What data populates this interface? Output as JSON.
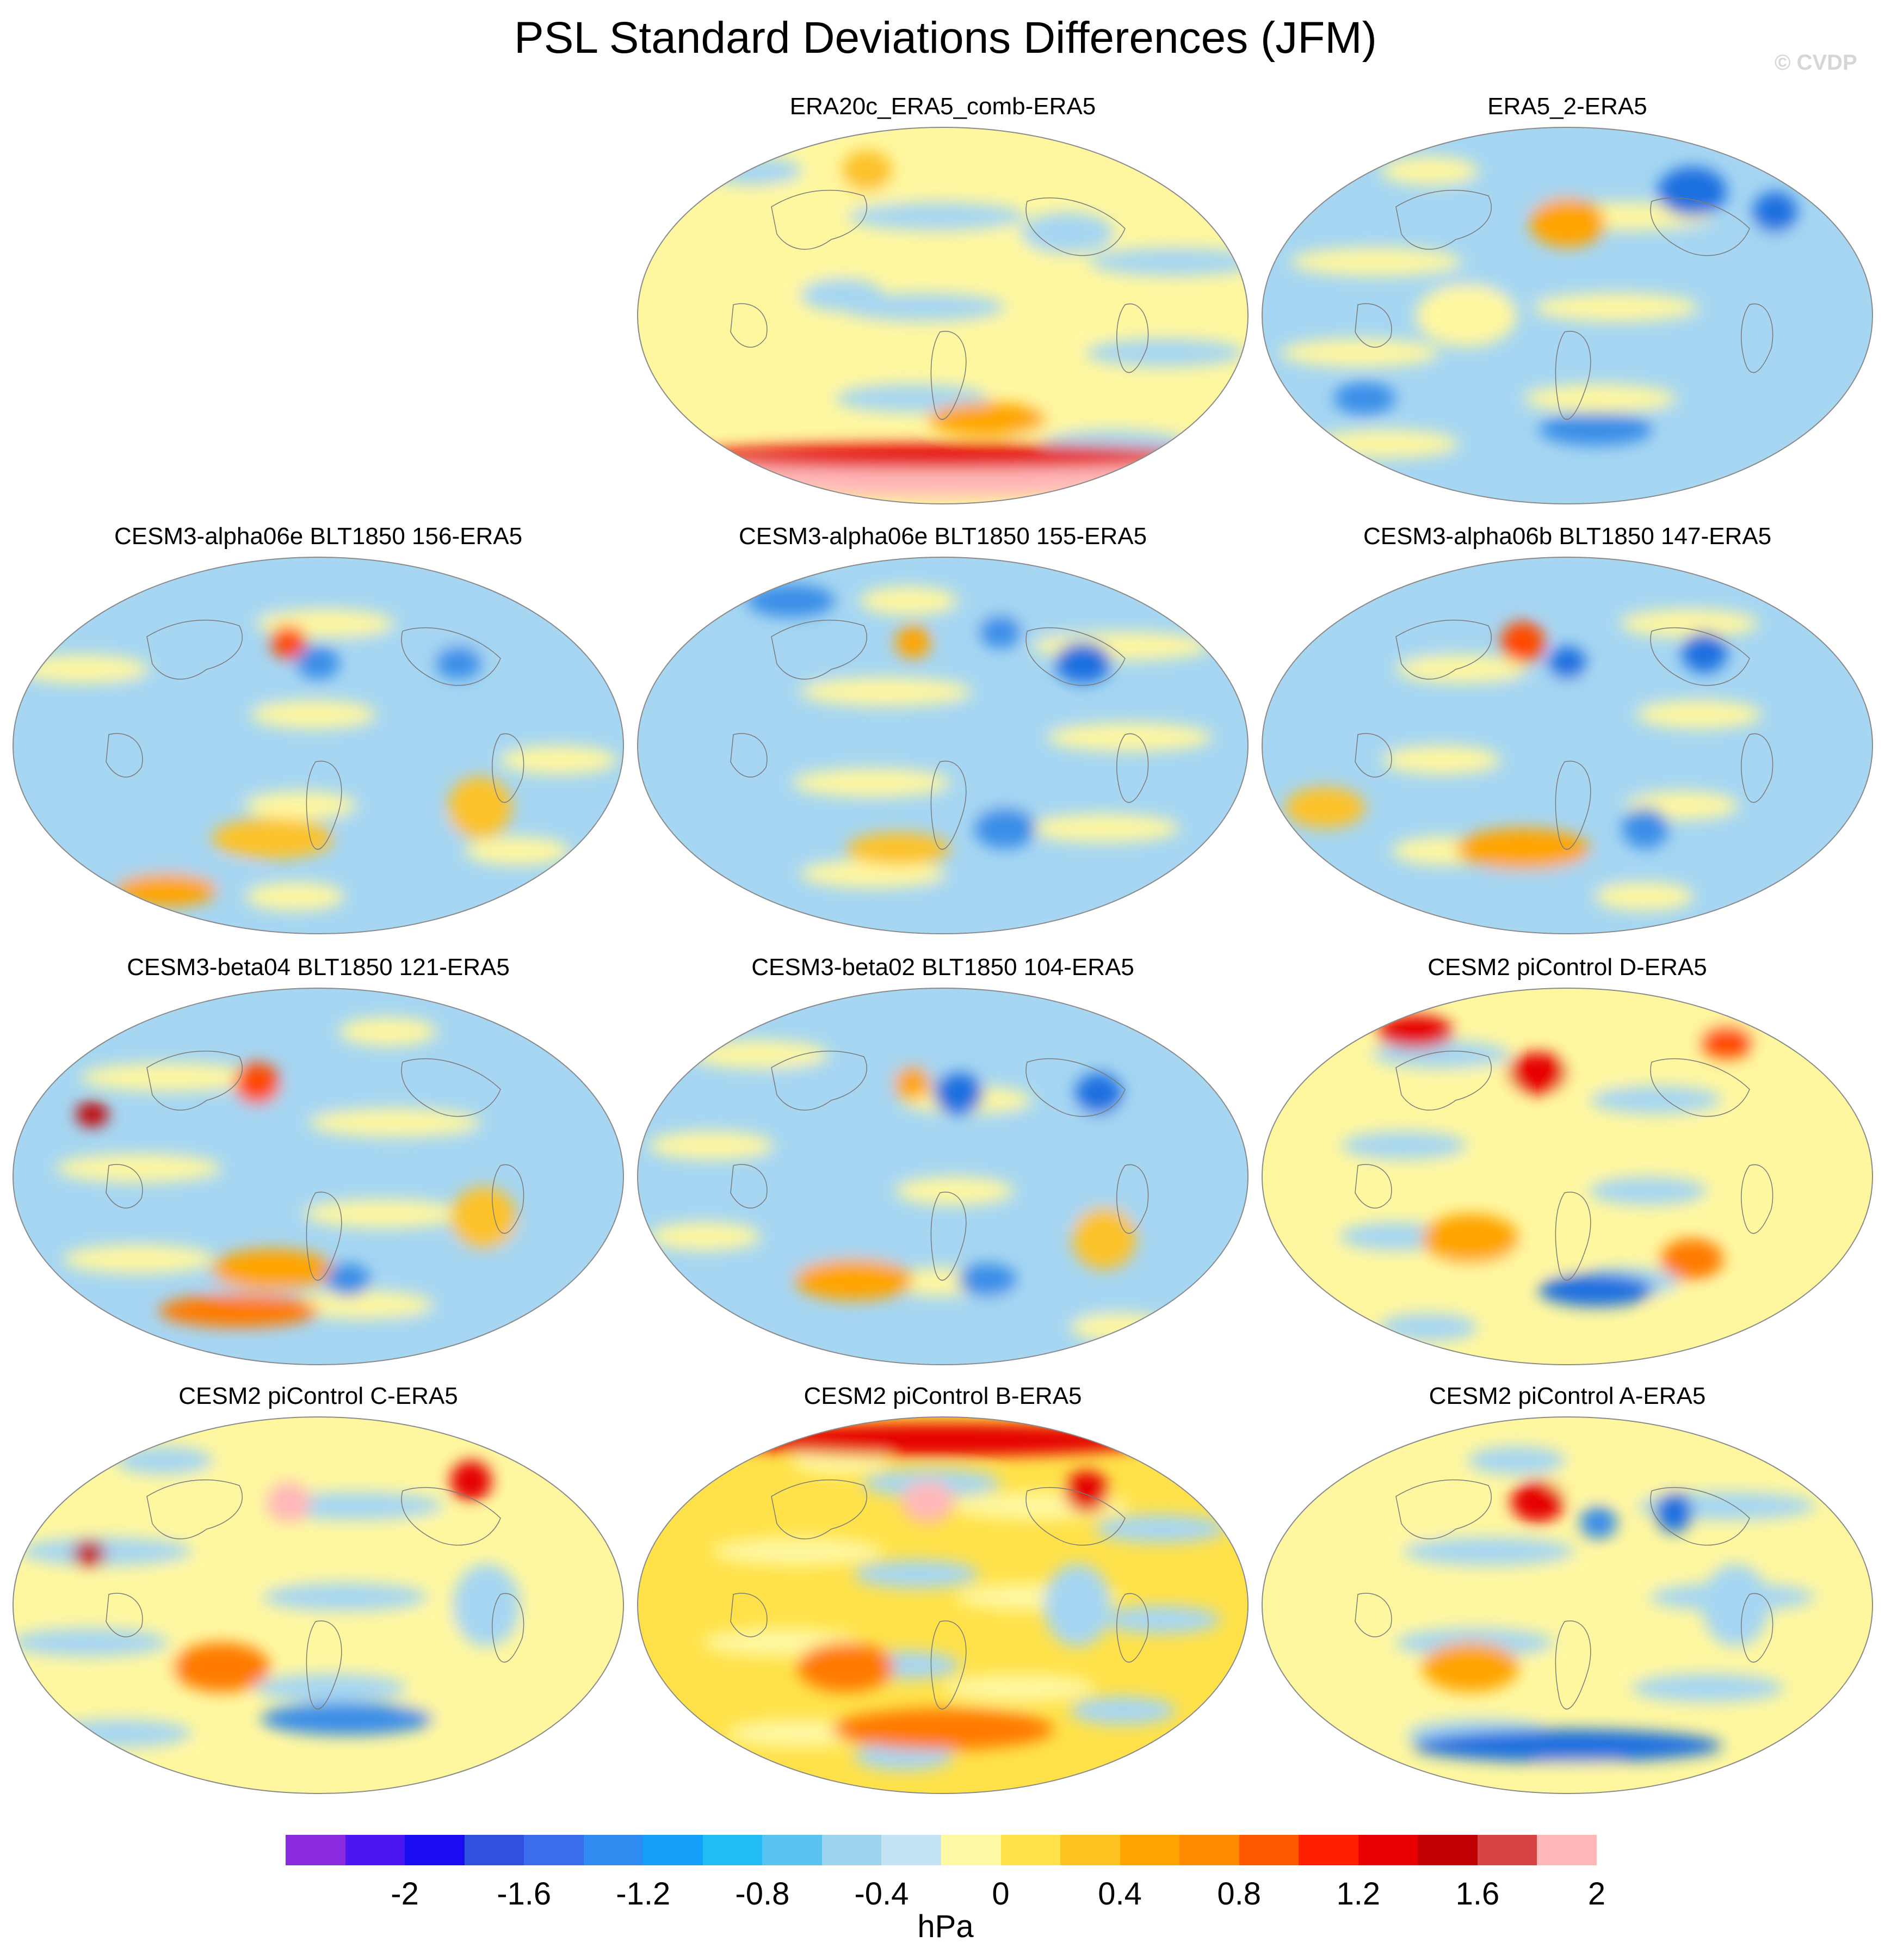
{
  "title": "PSL Standard Deviations Differences (JFM)",
  "watermark": "© CVDP",
  "colors": {
    "land_outline": "#7a7a7a",
    "map_border": "#8a8a8a"
  },
  "panels": [
    {
      "id": "era20c",
      "title": "ERA20c_ERA5_comb-ERA5",
      "row": 0,
      "col": 1,
      "base": 3,
      "blobs": [
        {
          "lon": 0,
          "lat": -78,
          "rx": 200,
          "ry": 10,
          "level": 11
        },
        {
          "lon": 0,
          "lat": -68,
          "rx": 200,
          "ry": 6,
          "level": 9
        },
        {
          "lon": 30,
          "lat": -50,
          "rx": 40,
          "ry": 8,
          "level": 6
        },
        {
          "lon": 80,
          "lat": 40,
          "rx": 30,
          "ry": 10,
          "level": 2
        },
        {
          "lon": -60,
          "lat": 10,
          "rx": 25,
          "ry": 8,
          "level": 2
        },
        {
          "lon": -60,
          "lat": 70,
          "rx": 20,
          "ry": 10,
          "level": 5
        }
      ]
    },
    {
      "id": "era5_2",
      "title": "ERA5_2-ERA5",
      "row": 0,
      "col": 2,
      "base": 2,
      "blobs": [
        {
          "lon": 0,
          "lat": 45,
          "rx": 25,
          "ry": 12,
          "level": 6
        },
        {
          "lon": 90,
          "lat": 60,
          "rx": 25,
          "ry": 12,
          "level": 0
        },
        {
          "lon": 140,
          "lat": 50,
          "rx": 15,
          "ry": 10,
          "level": 0
        },
        {
          "lon": -130,
          "lat": -40,
          "rx": 20,
          "ry": 8,
          "level": 1
        },
        {
          "lon": 20,
          "lat": -55,
          "rx": 40,
          "ry": 8,
          "level": 1
        },
        {
          "lon": -60,
          "lat": 0,
          "rx": 30,
          "ry": 15,
          "level": 3
        }
      ]
    },
    {
      "id": "a06e156",
      "title": "CESM3-alpha06e BLT1850 156-ERA5",
      "row": 1,
      "col": 0,
      "base": 2,
      "blobs": [
        {
          "lon": -20,
          "lat": 50,
          "rx": 12,
          "ry": 8,
          "level": 8
        },
        {
          "lon": 0,
          "lat": 40,
          "rx": 14,
          "ry": 8,
          "level": 1
        },
        {
          "lon": 90,
          "lat": 40,
          "rx": 15,
          "ry": 8,
          "level": 1
        },
        {
          "lon": -30,
          "lat": -45,
          "rx": 40,
          "ry": 10,
          "level": 5
        },
        {
          "lon": -120,
          "lat": -70,
          "rx": 40,
          "ry": 8,
          "level": 6
        },
        {
          "lon": 100,
          "lat": -30,
          "rx": 20,
          "ry": 15,
          "level": 5
        }
      ]
    },
    {
      "id": "a06e155",
      "title": "CESM3-alpha06e BLT1850 155-ERA5",
      "row": 1,
      "col": 1,
      "base": 2,
      "blobs": [
        {
          "lon": -20,
          "lat": 50,
          "rx": 12,
          "ry": 8,
          "level": 6
        },
        {
          "lon": 90,
          "lat": 40,
          "rx": 18,
          "ry": 10,
          "level": 0
        },
        {
          "lon": 40,
          "lat": 55,
          "rx": 15,
          "ry": 8,
          "level": 1
        },
        {
          "lon": 40,
          "lat": -40,
          "rx": 20,
          "ry": 10,
          "level": 1
        },
        {
          "lon": -30,
          "lat": -50,
          "rx": 35,
          "ry": 8,
          "level": 5
        },
        {
          "lon": -120,
          "lat": 70,
          "rx": 35,
          "ry": 8,
          "level": 1
        }
      ]
    },
    {
      "id": "a06b147",
      "title": "CESM3-alpha06b BLT1850 147-ERA5",
      "row": 1,
      "col": 2,
      "base": 2,
      "blobs": [
        {
          "lon": -30,
          "lat": 50,
          "rx": 15,
          "ry": 10,
          "level": 8
        },
        {
          "lon": 0,
          "lat": 40,
          "rx": 12,
          "ry": 8,
          "level": 0
        },
        {
          "lon": 90,
          "lat": 45,
          "rx": 15,
          "ry": 10,
          "level": 0
        },
        {
          "lon": -30,
          "lat": -50,
          "rx": 45,
          "ry": 10,
          "level": 6
        },
        {
          "lon": 50,
          "lat": -40,
          "rx": 15,
          "ry": 10,
          "level": 1
        },
        {
          "lon": -150,
          "lat": -30,
          "rx": 25,
          "ry": 10,
          "level": 5
        }
      ]
    },
    {
      "id": "b04121",
      "title": "CESM3-beta04 BLT1850 121-ERA5",
      "row": 2,
      "col": 0,
      "base": 2,
      "blobs": [
        {
          "lon": -40,
          "lat": 45,
          "rx": 15,
          "ry": 10,
          "level": 8
        },
        {
          "lon": -140,
          "lat": 30,
          "rx": 10,
          "ry": 6,
          "level": 10
        },
        {
          "lon": -30,
          "lat": -45,
          "rx": 40,
          "ry": 10,
          "level": 6
        },
        {
          "lon": -60,
          "lat": -65,
          "rx": 60,
          "ry": 8,
          "level": 7
        },
        {
          "lon": 20,
          "lat": -50,
          "rx": 15,
          "ry": 8,
          "level": 1
        },
        {
          "lon": 100,
          "lat": -20,
          "rx": 20,
          "ry": 15,
          "level": 5
        }
      ]
    },
    {
      "id": "b02104",
      "title": "CESM3-beta02 BLT1850 104-ERA5",
      "row": 2,
      "col": 1,
      "base": 2,
      "blobs": [
        {
          "lon": -20,
          "lat": 45,
          "rx": 12,
          "ry": 8,
          "level": 6
        },
        {
          "lon": 10,
          "lat": 40,
          "rx": 16,
          "ry": 10,
          "level": 0
        },
        {
          "lon": 100,
          "lat": 40,
          "rx": 15,
          "ry": 10,
          "level": 0
        },
        {
          "lon": -60,
          "lat": -50,
          "rx": 40,
          "ry": 10,
          "level": 6
        },
        {
          "lon": 30,
          "lat": -50,
          "rx": 20,
          "ry": 8,
          "level": 1
        },
        {
          "lon": 100,
          "lat": -30,
          "rx": 20,
          "ry": 15,
          "level": 5
        }
      ]
    },
    {
      "id": "cesm2d",
      "title": "CESM2 piControl D-ERA5",
      "row": 2,
      "col": 2,
      "base": 3,
      "blobs": [
        {
          "lon": -20,
          "lat": 50,
          "rx": 20,
          "ry": 10,
          "level": 9
        },
        {
          "lon": -120,
          "lat": 70,
          "rx": 30,
          "ry": 8,
          "level": 9
        },
        {
          "lon": 120,
          "lat": 65,
          "rx": 20,
          "ry": 8,
          "level": 8
        },
        {
          "lon": -60,
          "lat": -30,
          "rx": 30,
          "ry": 12,
          "level": 6
        },
        {
          "lon": 20,
          "lat": -55,
          "rx": 40,
          "ry": 8,
          "level": 0
        },
        {
          "lon": 80,
          "lat": -40,
          "rx": 20,
          "ry": 10,
          "level": 7
        }
      ]
    },
    {
      "id": "cesm2c",
      "title": "CESM2 piControl C-ERA5",
      "row": 3,
      "col": 0,
      "base": 3,
      "blobs": [
        {
          "lon": -20,
          "lat": 50,
          "rx": 15,
          "ry": 10,
          "level": 11
        },
        {
          "lon": 110,
          "lat": 60,
          "rx": 15,
          "ry": 10,
          "level": 9
        },
        {
          "lon": -140,
          "lat": 25,
          "rx": 10,
          "ry": 6,
          "level": 10
        },
        {
          "lon": -60,
          "lat": -30,
          "rx": 30,
          "ry": 12,
          "level": 7
        },
        {
          "lon": 20,
          "lat": -55,
          "rx": 60,
          "ry": 8,
          "level": 1
        },
        {
          "lon": 100,
          "lat": 0,
          "rx": 20,
          "ry": 20,
          "level": 2
        }
      ]
    },
    {
      "id": "cesm2b",
      "title": "CESM2 piControl B-ERA5",
      "row": 3,
      "col": 1,
      "base": 4,
      "blobs": [
        {
          "lon": -10,
          "lat": 50,
          "rx": 18,
          "ry": 10,
          "level": 11
        },
        {
          "lon": 0,
          "lat": 80,
          "rx": 200,
          "ry": 8,
          "level": 9
        },
        {
          "lon": 100,
          "lat": 55,
          "rx": 15,
          "ry": 10,
          "level": 9
        },
        {
          "lon": -60,
          "lat": -30,
          "rx": 30,
          "ry": 12,
          "level": 7
        },
        {
          "lon": 0,
          "lat": -60,
          "rx": 80,
          "ry": 10,
          "level": 7
        },
        {
          "lon": 80,
          "lat": 0,
          "rx": 20,
          "ry": 20,
          "level": 2
        }
      ]
    },
    {
      "id": "cesm2a",
      "title": "CESM2 piControl A-ERA5",
      "row": 3,
      "col": 2,
      "base": 3,
      "blobs": [
        {
          "lon": -20,
          "lat": 50,
          "rx": 18,
          "ry": 10,
          "level": 9
        },
        {
          "lon": 70,
          "lat": 45,
          "rx": 12,
          "ry": 10,
          "level": 0
        },
        {
          "lon": 20,
          "lat": 40,
          "rx": 12,
          "ry": 8,
          "level": 1
        },
        {
          "lon": -60,
          "lat": -30,
          "rx": 30,
          "ry": 12,
          "level": 6
        },
        {
          "lon": 0,
          "lat": -68,
          "rx": 120,
          "ry": 8,
          "level": 0
        },
        {
          "lon": 100,
          "lat": 0,
          "rx": 20,
          "ry": 20,
          "level": 2
        }
      ]
    }
  ],
  "colorbar": {
    "colors": [
      "#8a2be2",
      "#4b17f0",
      "#1a0cf0",
      "#3050e0",
      "#3a6cec",
      "#2e8cf0",
      "#14a0f8",
      "#22bdf5",
      "#5ac4f0",
      "#9fd4ee",
      "#c4e4f6",
      "#fff9a6",
      "#ffe24a",
      "#fdc220",
      "#ffa400",
      "#ff8a00",
      "#ff5a00",
      "#ff2000",
      "#e80000",
      "#c00000",
      "#d84444",
      "#ffb8b8"
    ],
    "tick_values": [
      "-2",
      "-1.6",
      "-1.2",
      "-0.8",
      "-0.4",
      "0",
      "0.4",
      "0.8",
      "1.2",
      "1.6",
      "2"
    ],
    "units": "hPa"
  },
  "level_palette": [
    "#1e6fe0",
    "#3a8ee8",
    "#a6d6f2",
    "#fff7a0",
    "#ffe24a",
    "#fcc22a",
    "#ffa400",
    "#ff7a00",
    "#ff4a00",
    "#e50000",
    "#c00000",
    "#ffb8b8"
  ]
}
